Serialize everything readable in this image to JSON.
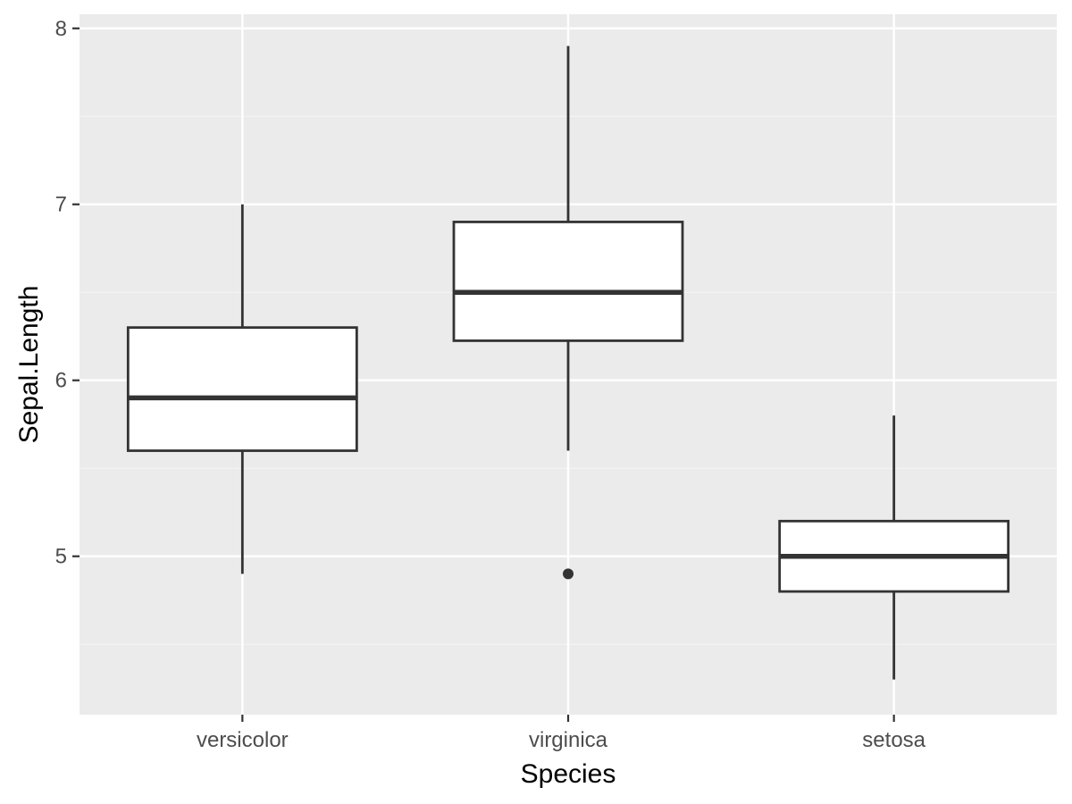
{
  "chart_data": {
    "type": "boxplot",
    "xlabel": "Species",
    "ylabel": "Sepal.Length",
    "ylim": [
      4.1,
      8.08
    ],
    "yticks": [
      5,
      6,
      7,
      8
    ],
    "ytick_labels": [
      "5",
      "6",
      "7",
      "8"
    ],
    "minor_yticks": [
      4.5,
      5.5,
      6.5,
      7.5
    ],
    "grid": true,
    "categories": [
      "versicolor",
      "virginica",
      "setosa"
    ],
    "boxes": [
      {
        "category": "versicolor",
        "whisker_low": 4.9,
        "q1": 5.6,
        "median": 5.9,
        "q3": 6.3,
        "whisker_high": 7.0,
        "outliers": []
      },
      {
        "category": "virginica",
        "whisker_low": 5.6,
        "q1": 6.225,
        "median": 6.5,
        "q3": 6.9,
        "whisker_high": 7.9,
        "outliers": [
          4.9
        ]
      },
      {
        "category": "setosa",
        "whisker_low": 4.3,
        "q1": 4.8,
        "median": 5.0,
        "q3": 5.2,
        "whisker_high": 5.8,
        "outliers": []
      }
    ],
    "colors": {
      "panel_background": "#ebebeb",
      "grid_major": "#ffffff",
      "grid_minor": "#f5f5f5",
      "box_fill": "#ffffff",
      "box_line": "#333333"
    }
  }
}
